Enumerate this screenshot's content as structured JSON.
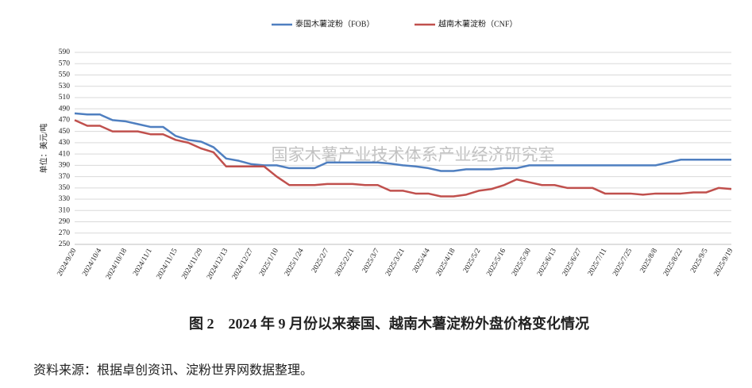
{
  "chart_data": {
    "type": "line",
    "y_label": "单位：美元/吨",
    "watermark": "国家木薯产业技术体系产业经济研究室",
    "categories": [
      "2024/9/20",
      null,
      "2024/10/4",
      null,
      "2024/10/18",
      null,
      "2024/11/1",
      null,
      "2024/11/15",
      null,
      "2024/11/29",
      null,
      "2024/12/13",
      null,
      "2024/12/27",
      null,
      "2025/1/10",
      null,
      "2025/1/24",
      null,
      "2025/2/7",
      null,
      "2025/2/21",
      null,
      "2025/3/7",
      null,
      "2025/3/21",
      null,
      "2025/4/4",
      null,
      "2025/4/18",
      null,
      "2025/5/2",
      null,
      "2025/5/16",
      null,
      "2025/5/30",
      null,
      "2025/6/13",
      null,
      "2025/6/27",
      null,
      "2025/7/11",
      null,
      "2025/7/25",
      null,
      "2025/8/8",
      null,
      "2025/8/22",
      null,
      "2025/9/5",
      null,
      "2025/9/19"
    ],
    "series": [
      {
        "name": "泰国木薯淀粉（FOB）",
        "color": "#4f7fc0",
        "values": [
          482,
          480,
          480,
          470,
          468,
          463,
          458,
          458,
          442,
          435,
          432,
          422,
          402,
          398,
          392,
          390,
          390,
          385,
          385,
          385,
          395,
          395,
          395,
          395,
          395,
          393,
          390,
          388,
          385,
          380,
          380,
          383,
          383,
          383,
          385,
          385,
          390,
          390,
          390,
          390,
          390,
          390,
          390,
          390,
          390,
          390,
          390,
          395,
          400,
          400,
          400,
          400,
          400
        ]
      },
      {
        "name": "越南木薯淀粉（CNF）",
        "color": "#c0504d",
        "values": [
          470,
          460,
          460,
          450,
          450,
          450,
          445,
          445,
          435,
          430,
          420,
          413,
          388,
          388,
          388,
          388,
          370,
          355,
          355,
          355,
          357,
          357,
          357,
          355,
          355,
          345,
          345,
          340,
          340,
          335,
          335,
          338,
          345,
          348,
          355,
          365,
          360,
          355,
          355,
          350,
          350,
          350,
          340,
          340,
          340,
          338,
          340,
          340,
          340,
          342,
          342,
          350,
          348
        ]
      }
    ],
    "ylim": [
      250,
      590
    ],
    "yticks": [
      250,
      270,
      290,
      310,
      330,
      350,
      370,
      390,
      410,
      430,
      450,
      470,
      490,
      510,
      530,
      550,
      570,
      590
    ],
    "grid": true
  },
  "figure": {
    "caption": "图 2　2024 年 9 月份以来泰国、越南木薯淀粉外盘价格变化情况",
    "source": "资料来源：根据卓创资讯、淀粉世界网数据整理。"
  }
}
